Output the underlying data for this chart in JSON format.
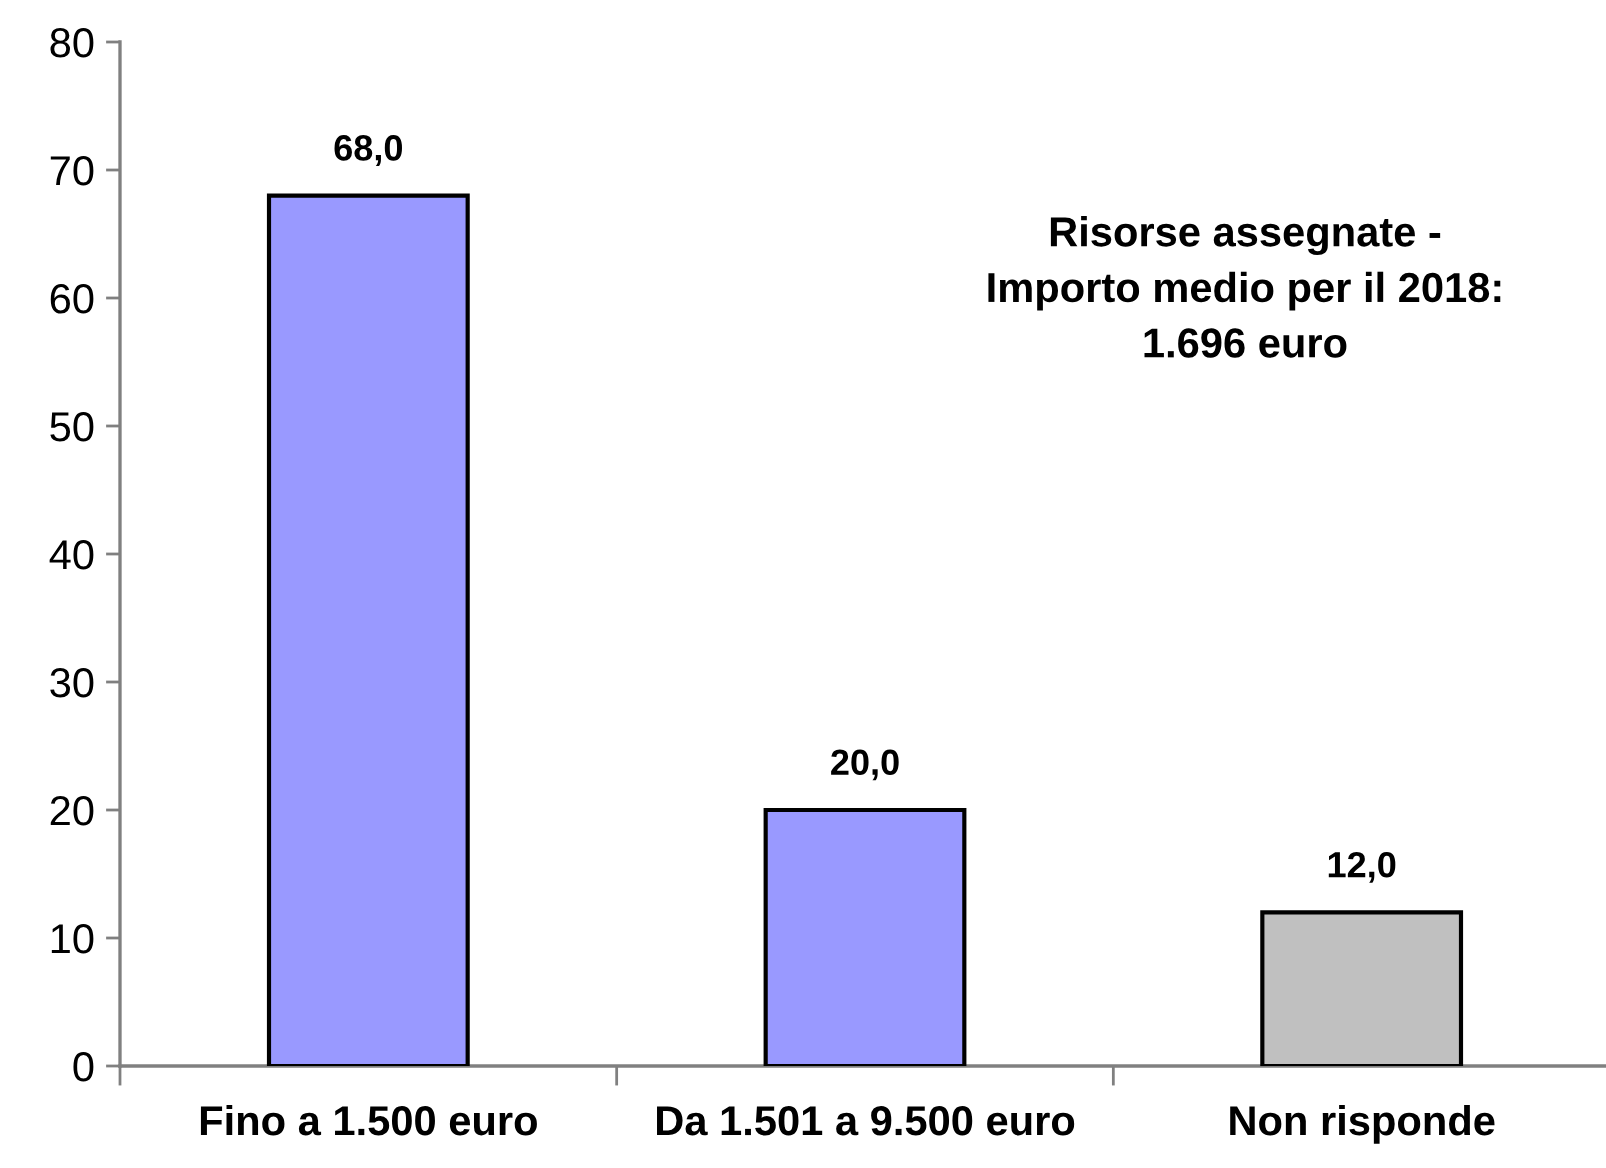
{
  "chart_data": {
    "type": "bar",
    "categories": [
      "Fino a 1.500 euro",
      "Da 1.501 a 9.500 euro",
      "Non risponde"
    ],
    "values": [
      68.0,
      20.0,
      12.0
    ],
    "colors": [
      "#9999ff",
      "#9999ff",
      "#c0c0c0"
    ],
    "value_labels": [
      "68,0",
      "20,0",
      "12,0"
    ],
    "ylim": [
      0,
      80
    ],
    "yticks": [
      0,
      10,
      20,
      30,
      40,
      50,
      60,
      70,
      80
    ],
    "annotations": [
      "Risorse assegnate -\nImporto medio per il 2018:\n1.696 euro"
    ],
    "grid": false,
    "legend": false
  }
}
